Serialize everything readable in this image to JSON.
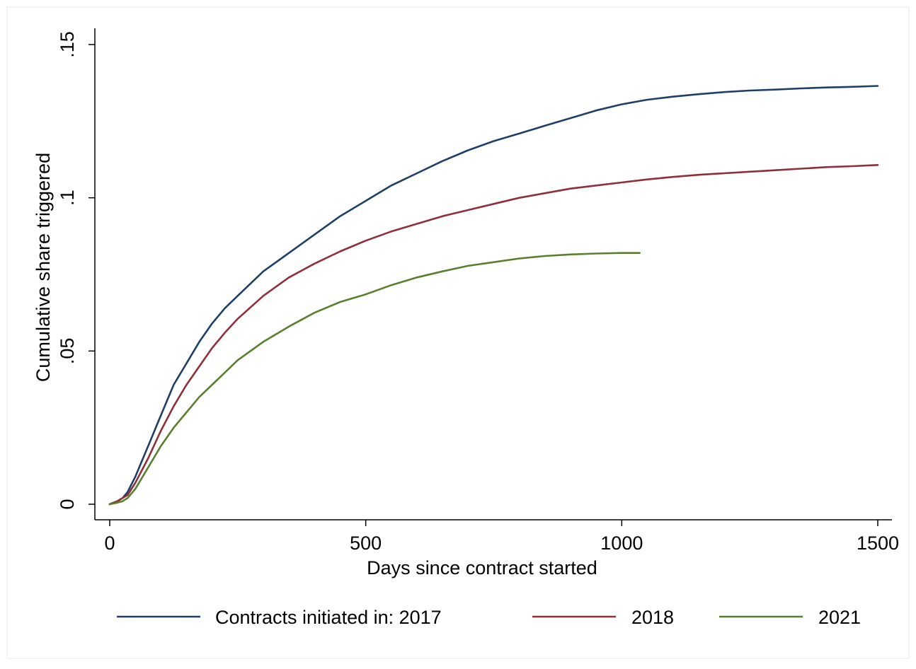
{
  "chart_data": {
    "type": "line",
    "title": "",
    "xlabel": "Days since contract started",
    "ylabel": "Cumulative share triggered",
    "xlim": [
      0,
      1500
    ],
    "ylim": [
      0,
      0.15
    ],
    "x_ticks": [
      0,
      500,
      1000,
      1500
    ],
    "x_tick_labels": [
      "0",
      "500",
      "1000",
      "1500"
    ],
    "y_ticks": [
      0,
      0.05,
      0.1,
      0.15
    ],
    "y_tick_labels": [
      "0",
      ".05",
      ".1",
      ".15"
    ],
    "grid": false,
    "legend_placement": "bottom",
    "series": [
      {
        "name": "Contracts initiated in: 2017",
        "color": "#1f3f66",
        "x": [
          0,
          15,
          25,
          35,
          50,
          75,
          100,
          125,
          150,
          175,
          200,
          225,
          250,
          300,
          350,
          400,
          450,
          500,
          550,
          600,
          650,
          700,
          750,
          800,
          850,
          900,
          950,
          1000,
          1050,
          1100,
          1150,
          1200,
          1250,
          1300,
          1350,
          1400,
          1450,
          1500
        ],
        "y": [
          0,
          0.001,
          0.002,
          0.004,
          0.009,
          0.019,
          0.029,
          0.039,
          0.046,
          0.053,
          0.059,
          0.064,
          0.068,
          0.076,
          0.082,
          0.088,
          0.094,
          0.099,
          0.104,
          0.108,
          0.112,
          0.1155,
          0.1185,
          0.121,
          0.1235,
          0.126,
          0.1285,
          0.1305,
          0.132,
          0.133,
          0.1338,
          0.1345,
          0.135,
          0.1353,
          0.1357,
          0.136,
          0.1362,
          0.1365
        ]
      },
      {
        "name": "2018",
        "color": "#8f2f3a",
        "x": [
          0,
          15,
          25,
          35,
          50,
          75,
          100,
          125,
          150,
          175,
          200,
          225,
          250,
          300,
          350,
          400,
          450,
          500,
          550,
          600,
          650,
          700,
          750,
          800,
          850,
          900,
          950,
          1000,
          1050,
          1100,
          1150,
          1200,
          1250,
          1300,
          1350,
          1400,
          1450,
          1500
        ],
        "y": [
          0,
          0.001,
          0.002,
          0.003,
          0.007,
          0.015,
          0.024,
          0.032,
          0.039,
          0.045,
          0.051,
          0.056,
          0.0605,
          0.068,
          0.074,
          0.0785,
          0.0825,
          0.086,
          0.089,
          0.0915,
          0.094,
          0.096,
          0.098,
          0.1,
          0.1015,
          0.103,
          0.104,
          0.105,
          0.106,
          0.1068,
          0.1075,
          0.108,
          0.1085,
          0.109,
          0.1095,
          0.11,
          0.1103,
          0.1107
        ]
      },
      {
        "name": "2021",
        "color": "#5a7f2e",
        "x": [
          0,
          15,
          25,
          35,
          50,
          75,
          100,
          125,
          150,
          175,
          200,
          225,
          250,
          300,
          350,
          400,
          450,
          500,
          550,
          600,
          650,
          700,
          750,
          800,
          850,
          900,
          950,
          1000,
          1035
        ],
        "y": [
          0,
          0.0005,
          0.001,
          0.002,
          0.005,
          0.012,
          0.019,
          0.025,
          0.03,
          0.035,
          0.039,
          0.043,
          0.047,
          0.053,
          0.058,
          0.0625,
          0.066,
          0.0685,
          0.0715,
          0.074,
          0.076,
          0.0778,
          0.079,
          0.0802,
          0.081,
          0.0815,
          0.0818,
          0.082,
          0.082
        ]
      }
    ]
  }
}
